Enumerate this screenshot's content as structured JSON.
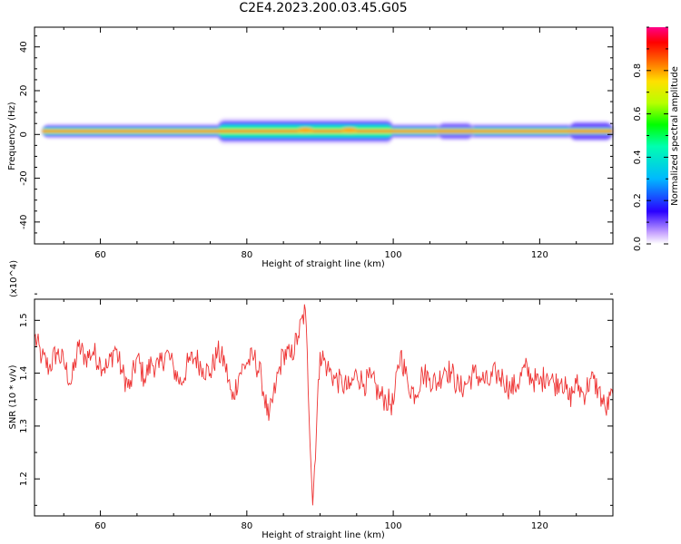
{
  "title": "C2E4.2023.200.03.45.G05",
  "chart_data": [
    {
      "type": "heatmap",
      "name": "spectrogram",
      "xlabel": "Height of straight line (km)",
      "ylabel": "Frequency (Hz)",
      "xlim": [
        51,
        130
      ],
      "ylim": [
        -50,
        49
      ],
      "xticks": [
        60,
        80,
        100,
        120
      ],
      "yticks": [
        -40,
        -20,
        0,
        20,
        40
      ],
      "colorbar": {
        "label": "Normalized spectral amplitude",
        "range": [
          0,
          1
        ],
        "ticks": [
          0.0,
          0.2,
          0.4,
          0.6,
          0.8
        ]
      },
      "signal_band_frequency_hz": 1.5,
      "widening_regions_km": [
        [
          76,
          100
        ],
        [
          106,
          111
        ],
        [
          124,
          130
        ]
      ]
    },
    {
      "type": "line",
      "name": "snr",
      "xlabel": "Height of straight line (km)",
      "ylabel": "SNR (10 * v/v)",
      "y_multiplier_label": "(x10^4)",
      "xlim": [
        51,
        130
      ],
      "ylim": [
        1.13,
        1.54
      ],
      "xticks": [
        60,
        80,
        100,
        120
      ],
      "yticks": [
        1.2,
        1.3,
        1.4,
        1.5
      ],
      "line_color": "#ee3333",
      "series": [
        {
          "x": [
            51,
            52,
            53,
            54,
            55,
            56,
            57,
            58,
            59,
            60,
            61,
            62,
            63,
            64,
            65,
            66,
            67,
            68,
            69,
            70,
            71,
            72,
            73,
            74,
            75,
            76,
            77,
            78,
            79,
            80,
            81,
            82,
            83,
            84,
            85,
            86,
            87,
            88,
            89,
            90,
            91,
            92,
            93,
            94,
            95,
            96,
            97,
            98,
            99,
            100,
            101,
            102,
            103,
            104,
            105,
            106,
            107,
            108,
            109,
            110,
            111,
            112,
            113,
            114,
            115,
            116,
            117,
            118,
            119,
            120,
            121,
            122,
            123,
            124,
            125,
            126,
            127,
            128,
            129,
            130
          ],
          "y": [
            1.47,
            1.43,
            1.41,
            1.44,
            1.42,
            1.38,
            1.45,
            1.43,
            1.44,
            1.42,
            1.41,
            1.45,
            1.4,
            1.37,
            1.43,
            1.39,
            1.42,
            1.41,
            1.44,
            1.41,
            1.38,
            1.42,
            1.43,
            1.41,
            1.4,
            1.44,
            1.42,
            1.35,
            1.4,
            1.42,
            1.43,
            1.39,
            1.31,
            1.38,
            1.44,
            1.43,
            1.47,
            1.52,
            1.15,
            1.44,
            1.41,
            1.39,
            1.38,
            1.37,
            1.4,
            1.38,
            1.39,
            1.36,
            1.35,
            1.34,
            1.44,
            1.38,
            1.36,
            1.4,
            1.39,
            1.38,
            1.41,
            1.4,
            1.37,
            1.38,
            1.4,
            1.39,
            1.38,
            1.4,
            1.39,
            1.37,
            1.38,
            1.41,
            1.39,
            1.38,
            1.4,
            1.38,
            1.39,
            1.35,
            1.38,
            1.36,
            1.39,
            1.37,
            1.33,
            1.36
          ]
        }
      ]
    }
  ]
}
